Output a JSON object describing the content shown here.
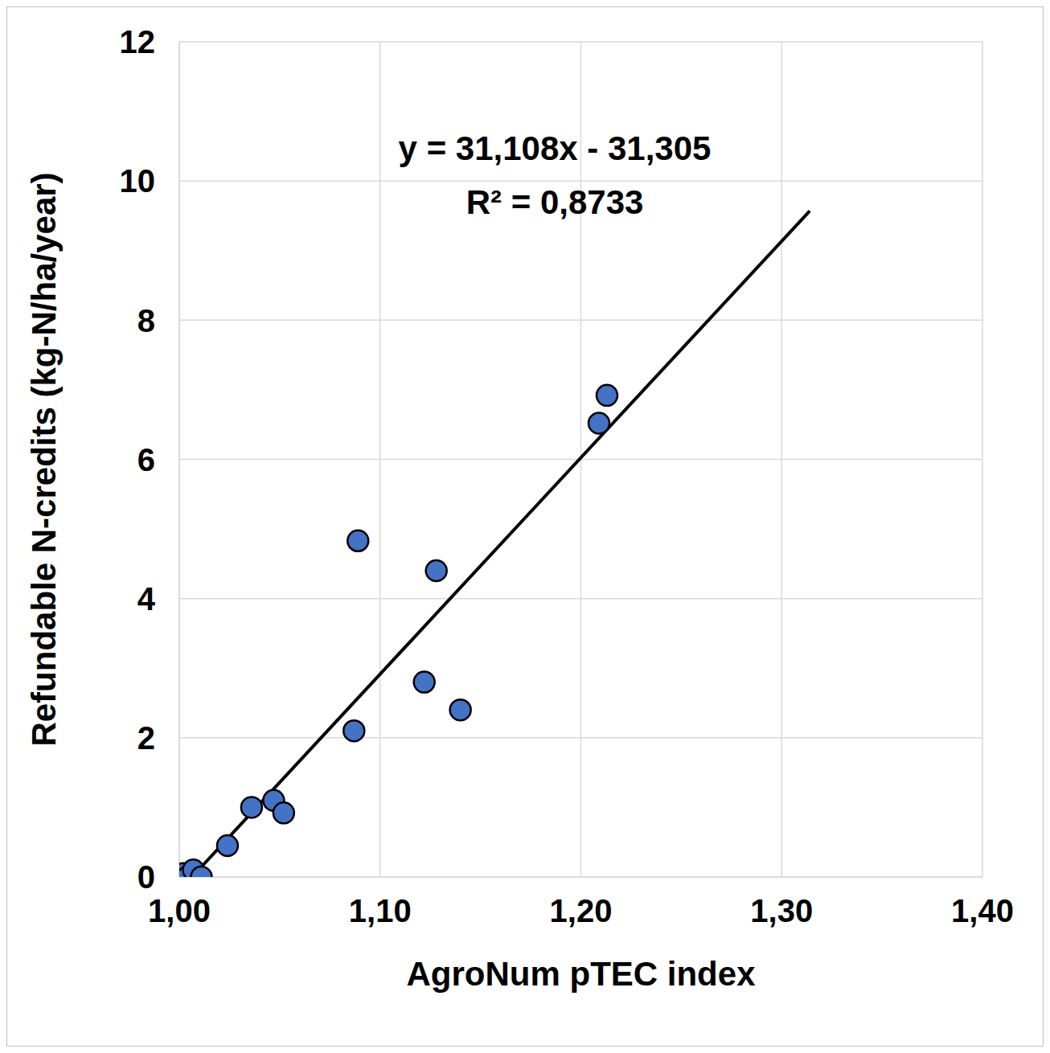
{
  "chart_data": {
    "type": "scatter",
    "x_label": "AgroNum pTEC index",
    "y_label": "Refundable N-credits (kg-N/ha/year)",
    "x": [
      1.002,
      1.004,
      1.007,
      1.011,
      1.024,
      1.036,
      1.047,
      1.052,
      1.087,
      1.089,
      1.122,
      1.128,
      1.14,
      1.209,
      1.213
    ],
    "values": [
      0.05,
      0.0,
      0.1,
      0.0,
      0.45,
      1.0,
      1.1,
      0.92,
      2.1,
      4.83,
      2.8,
      4.4,
      2.4,
      6.52,
      6.92
    ],
    "color": "#4472c4",
    "marker": "circle",
    "xlim": [
      1.0,
      1.4
    ],
    "xticks": [
      {
        "value": 1.0,
        "label": "1,00"
      },
      {
        "value": 1.1,
        "label": "1,10"
      },
      {
        "value": 1.2,
        "label": "1,20"
      },
      {
        "value": 1.3,
        "label": "1,30"
      },
      {
        "value": 1.4,
        "label": "1,40"
      }
    ],
    "ylim": [
      0,
      12
    ],
    "yticks": [
      0,
      2,
      4,
      6,
      8,
      10,
      12
    ],
    "grid": true,
    "trendline": {
      "slope": 31.108,
      "intercept": -31.305,
      "x": [
        1.007,
        1.314
      ],
      "color": "#000000"
    },
    "annotations": [
      {
        "text": "y = 31,108x - 31,305",
        "x": 1.187,
        "y": 10.48
      },
      {
        "text": "R² = 0,8733",
        "x": 1.187,
        "y": 9.7
      }
    ]
  }
}
